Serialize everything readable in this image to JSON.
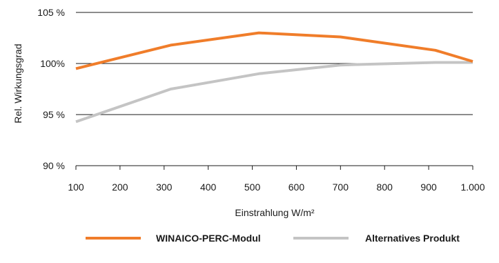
{
  "chart_data": {
    "type": "line",
    "xlabel": "Einstrahlung W/m²",
    "ylabel": "Rel. Wirkungsgrad",
    "x_ticks": [
      {
        "value": 100,
        "label": "100"
      },
      {
        "value": 200,
        "label": "200"
      },
      {
        "value": 300,
        "label": "300"
      },
      {
        "value": 400,
        "label": "400"
      },
      {
        "value": 500,
        "label": "500"
      },
      {
        "value": 600,
        "label": "600"
      },
      {
        "value": 700,
        "label": "700"
      },
      {
        "value": 800,
        "label": "800"
      },
      {
        "value": 900,
        "label": "900"
      },
      {
        "value": 1000,
        "label": "1.000"
      }
    ],
    "y_ticks": [
      {
        "value": 90,
        "label": "90 %"
      },
      {
        "value": 95,
        "label": "95 %"
      },
      {
        "value": 100,
        "label": "100%"
      },
      {
        "value": 105,
        "label": "105 %"
      }
    ],
    "xlim": [
      100,
      1000
    ],
    "ylim": [
      90,
      105
    ],
    "grid": true,
    "legend_position": "bottom",
    "series": [
      {
        "name": "WINAICO-PERC-Modul",
        "color": "#f07d2a",
        "points": [
          [
            100,
            99.5
          ],
          [
            315,
            101.8
          ],
          [
            515,
            103.0
          ],
          [
            700,
            102.6
          ],
          [
            915,
            101.3
          ],
          [
            1000,
            100.2
          ]
        ]
      },
      {
        "name": "Alternatives Produkt",
        "color": "#c4c4c4",
        "points": [
          [
            100,
            94.3
          ],
          [
            315,
            97.5
          ],
          [
            515,
            99.0
          ],
          [
            700,
            99.85
          ],
          [
            915,
            100.1
          ],
          [
            1000,
            100.1
          ]
        ]
      }
    ]
  }
}
